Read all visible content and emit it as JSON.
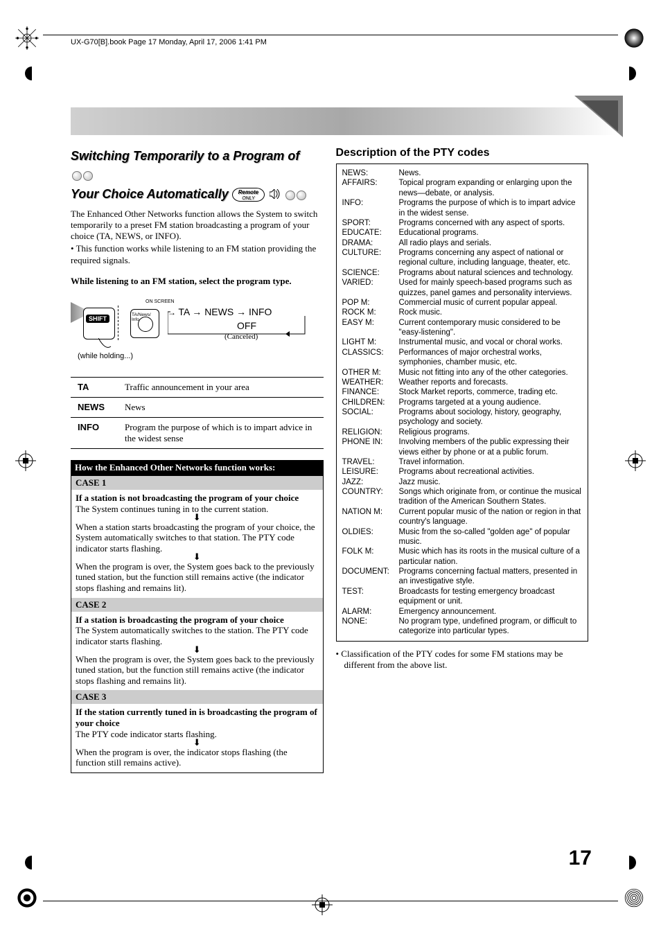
{
  "header": "UX-G70[B].book  Page 17  Monday, April 17, 2006  1:41 PM",
  "section_title_1": "Switching Temporarily to a Program of",
  "section_title_2": "Your Choice Automatically",
  "remote_label_top": "Remote",
  "remote_label_bottom": "ONLY",
  "intro_p": "The Enhanced Other Networks function allows the System to switch temporarily to a preset FM station broadcasting a program of your choice (TA, NEWS, or INFO).",
  "intro_bullet": "This function works while listening to an FM station providing the required signals.",
  "instruction": "While listening to an FM station, select the program type.",
  "diagram": {
    "shift": "SHIFT",
    "on_screen": "ON SCREEN",
    "ta_news_info": "TA/News/\nInfo",
    "while_holding": "(while holding...)",
    "flow": "TA → NEWS → INFO",
    "off": "OFF",
    "canceled": "(Canceled)"
  },
  "types": [
    {
      "code": "TA",
      "desc": "Traffic announcement in your area"
    },
    {
      "code": "NEWS",
      "desc": "News"
    },
    {
      "code": "INFO",
      "desc": "Program the purpose of which is to impart advice in the widest sense"
    }
  ],
  "how_title": "How the Enhanced Other Networks function works:",
  "cases": [
    {
      "hdr": "CASE 1",
      "lead": "If a station is not broadcasting the program of your choice",
      "p1": "The System continues tuning in to the current station.",
      "p2": "When a station starts broadcasting the program of your choice, the System automatically switches to that station. The PTY code indicator starts flashing.",
      "p3": "When the program is over, the System goes back to the previously tuned station, but the function still remains active (the indicator stops flashing and remains lit)."
    },
    {
      "hdr": "CASE 2",
      "lead": "If a station is broadcasting the program of your choice",
      "p1": "The System automatically switches to the station. The PTY code indicator starts flashing.",
      "p2": "When the program is over, the System goes back to the previously tuned station, but the function still remains active (the indicator stops flashing and remains lit)."
    },
    {
      "hdr": "CASE 3",
      "lead": "If the station currently tuned in is broadcasting the program of your choice",
      "p1": "The PTY code indicator starts flashing.",
      "p2": "When the program is over, the indicator stops flashing (the function still remains active)."
    }
  ],
  "pty_title": "Description of the PTY codes",
  "pty": [
    {
      "c": "NEWS:",
      "d": "News."
    },
    {
      "c": "AFFAIRS:",
      "d": "Topical program expanding or enlarging upon the news—debate, or analysis."
    },
    {
      "c": "INFO:",
      "d": "Programs the purpose of which is to impart advice in the widest sense."
    },
    {
      "c": "SPORT:",
      "d": "Programs concerned with any aspect of sports."
    },
    {
      "c": "EDUCATE:",
      "d": "Educational programs."
    },
    {
      "c": "DRAMA:",
      "d": "All radio plays and serials."
    },
    {
      "c": "CULTURE:",
      "d": "Programs concerning any aspect of national or regional culture, including language, theater, etc."
    },
    {
      "c": "SCIENCE:",
      "d": "Programs about natural sciences and technology."
    },
    {
      "c": "VARIED:",
      "d": "Used for mainly speech-based programs such as quizzes, panel games and personality interviews."
    },
    {
      "c": "POP M:",
      "d": "Commercial music of current popular appeal."
    },
    {
      "c": "ROCK M:",
      "d": "Rock music."
    },
    {
      "c": "EASY M:",
      "d": "Current contemporary music considered to be \"easy-listening\"."
    },
    {
      "c": "LIGHT M:",
      "d": "Instrumental music, and vocal or choral works."
    },
    {
      "c": "CLASSICS:",
      "d": "Performances of major orchestral works, symphonies, chamber music, etc."
    },
    {
      "c": "OTHER M:",
      "d": "Music not fitting into any of the other categories."
    },
    {
      "c": "WEATHER:",
      "d": "Weather reports and forecasts."
    },
    {
      "c": "FINANCE:",
      "d": "Stock Market reports, commerce, trading etc."
    },
    {
      "c": "CHILDREN:",
      "d": "Programs targeted at a young audience."
    },
    {
      "c": "SOCIAL:",
      "d": "Programs about sociology, history, geography, psychology and society."
    },
    {
      "c": "RELIGION:",
      "d": "Religious programs."
    },
    {
      "c": "PHONE IN:",
      "d": "Involving members of the public expressing their views either by phone or at a public forum."
    },
    {
      "c": "TRAVEL:",
      "d": "Travel information."
    },
    {
      "c": "LEISURE:",
      "d": "Programs about recreational activities."
    },
    {
      "c": "JAZZ:",
      "d": "Jazz music."
    },
    {
      "c": "COUNTRY:",
      "d": "Songs which originate from, or continue the musical tradition of the American Southern States."
    },
    {
      "c": "NATION M:",
      "d": "Current popular music of the nation or region in that country's language."
    },
    {
      "c": "OLDIES:",
      "d": "Music from the so-called \"golden age\" of popular music."
    },
    {
      "c": "FOLK M:",
      "d": "Music which has its roots in the musical culture of a particular nation."
    },
    {
      "c": "DOCUMENT:",
      "d": "Programs concerning factual matters, presented in an investigative style."
    },
    {
      "c": "TEST:",
      "d": "Broadcasts for testing emergency broadcast equipment or unit."
    },
    {
      "c": "ALARM:",
      "d": "Emergency announcement."
    },
    {
      "c": "NONE:",
      "d": "No program type, undefined program, or difficult to categorize into particular types."
    }
  ],
  "pty_note": "• Classification of the PTY codes for some FM stations may be different from the above list.",
  "page_number": "17"
}
